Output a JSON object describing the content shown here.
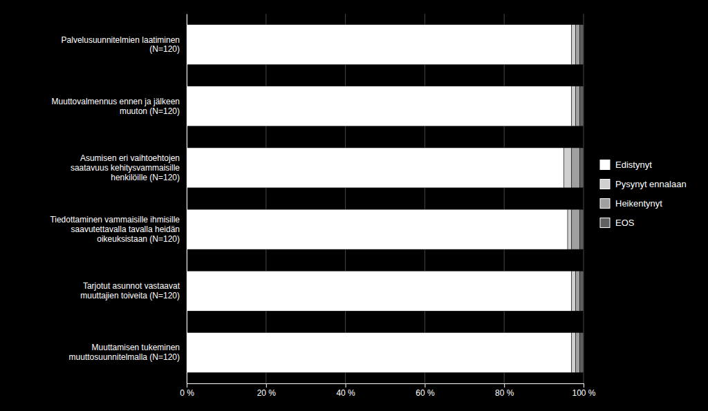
{
  "chart_data": {
    "type": "bar",
    "orientation": "horizontal",
    "stacked": true,
    "categories": [
      "Muuttamisen tukeminen\nmuuttosuunnitelmalla (N=120)",
      "Tarjotut asunnot vastaavat\nmuuttajien toiveita (N=120)",
      "Tiedottaminen vammaisille ihmisille\nsaavutettavalla tavalla heidän\noikeuksistaan (N=120)",
      "Asumisen eri vaihtoehtojen\nsaatavuus kehitysvammaisille\nhenkilöille (N=120)",
      "Muuttovalmennus ennen ja jälkeen\nmuuton (N=120)",
      "Palvelusuunnitelmien laatiminen\n(N=120)"
    ],
    "series": [
      {
        "name": "Edistynyt",
        "color": "#ffffff",
        "values": [
          97,
          97,
          96,
          95,
          97,
          97
        ]
      },
      {
        "name": "Pysynyt ennalaan",
        "color": "#d0d0d0",
        "values": [
          1,
          1,
          1,
          2,
          1,
          1
        ]
      },
      {
        "name": "Heikentynyt",
        "color": "#a0a0a0",
        "values": [
          1,
          1,
          2,
          2,
          1,
          1
        ]
      },
      {
        "name": "EOS",
        "color": "#606060",
        "values": [
          1,
          1,
          1,
          1,
          1,
          1
        ]
      }
    ],
    "xlim": [
      0,
      100
    ],
    "xticks": [
      {
        "value": 0,
        "label": "0 %"
      },
      {
        "value": 20,
        "label": "20 %"
      },
      {
        "value": 40,
        "label": "40 %"
      },
      {
        "value": 60,
        "label": "60 %"
      },
      {
        "value": 80,
        "label": "80 %"
      },
      {
        "value": 100,
        "label": "100 %"
      }
    ],
    "grid": true,
    "legend": "right"
  }
}
